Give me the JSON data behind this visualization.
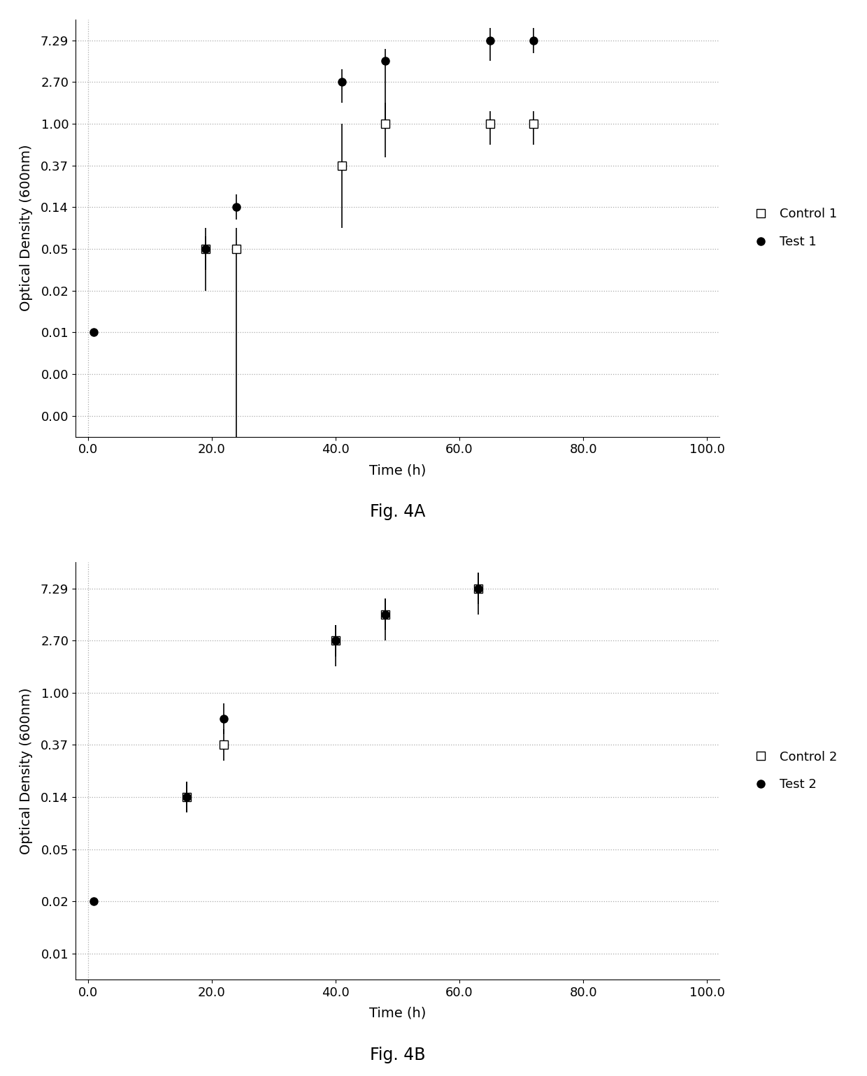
{
  "fig4A": {
    "control_x": [
      19.0,
      24.0,
      41.0,
      48.0,
      65.0,
      72.0
    ],
    "control_y": [
      4,
      4,
      6,
      7,
      7,
      7
    ],
    "control_yerr_low": [
      1.0,
      4.5,
      1.5,
      0.8,
      0.5,
      0.5
    ],
    "control_yerr_high": [
      0.5,
      0.5,
      1.0,
      0.5,
      0.3,
      0.3
    ],
    "test_x": [
      1.0,
      19.0,
      24.0,
      41.0,
      48.0,
      65.0,
      72.0
    ],
    "test_y": [
      2,
      4,
      5,
      8,
      8.5,
      9,
      9
    ],
    "test_yerr_low": [
      0.0,
      0.5,
      0.3,
      0.5,
      1.5,
      0.5,
      0.3
    ],
    "test_yerr_high": [
      0.0,
      0.3,
      0.3,
      0.3,
      0.3,
      0.3,
      0.3
    ],
    "legend_labels": [
      "Control 1",
      "Test 1"
    ],
    "caption": "Fig. 4A"
  },
  "fig4B": {
    "control_x": [
      16.0,
      22.0,
      40.0,
      48.0,
      63.0
    ],
    "control_y": [
      5,
      6,
      8,
      8.5,
      9
    ],
    "control_yerr_low": [
      0.3,
      0.3,
      0.5,
      0.5,
      0.5
    ],
    "control_yerr_high": [
      0.3,
      0.3,
      0.3,
      0.3,
      0.3
    ],
    "test_x": [
      1.0,
      16.0,
      22.0,
      40.0,
      48.0,
      63.0
    ],
    "test_y": [
      3,
      5,
      6.5,
      8,
      8.5,
      9
    ],
    "test_yerr_low": [
      0.0,
      0.3,
      0.3,
      0.3,
      0.3,
      0.3
    ],
    "test_yerr_high": [
      0.0,
      0.3,
      0.3,
      0.3,
      0.3,
      0.3
    ],
    "legend_labels": [
      "Control 2",
      "Test 2"
    ],
    "caption": "Fig. 4B"
  },
  "ytick_positions_A": [
    0,
    1,
    2,
    3,
    4,
    5,
    6,
    7,
    8,
    9
  ],
  "ytick_labels_A": [
    "0.00",
    "0.00",
    "0.01",
    "0.02",
    "0.05",
    "0.14",
    "0.37",
    "1.00",
    "2.70",
    "7.29"
  ],
  "ytick_positions_B": [
    0,
    1,
    2,
    3,
    4,
    5,
    6,
    7,
    8,
    9
  ],
  "ytick_labels_B": [
    "",
    "",
    "0.01",
    "0.02",
    "0.05",
    "0.14",
    "0.37",
    "1.00",
    "2.70",
    "7.29"
  ],
  "xlabel": "Time (h)",
  "ylabel": "Optical Density (600nm)",
  "xlim": [
    -2.0,
    102.0
  ],
  "ylim_A": [
    -0.5,
    9.5
  ],
  "ylim_B": [
    1.5,
    9.5
  ],
  "xticks": [
    0.0,
    20.0,
    40.0,
    60.0,
    80.0,
    100.0
  ],
  "xtick_labels": [
    "0.0",
    "20.0",
    "40.0",
    "60.0",
    "80.0",
    "100.0"
  ],
  "background_color": "#ffffff",
  "grid_color": "#aaaaaa",
  "marker_color": "#000000",
  "marker_facecolor_control": "#ffffff",
  "marker_size": 8,
  "fontsize_ticks": 13,
  "fontsize_labels": 14,
  "fontsize_caption": 17,
  "fontsize_legend": 13
}
